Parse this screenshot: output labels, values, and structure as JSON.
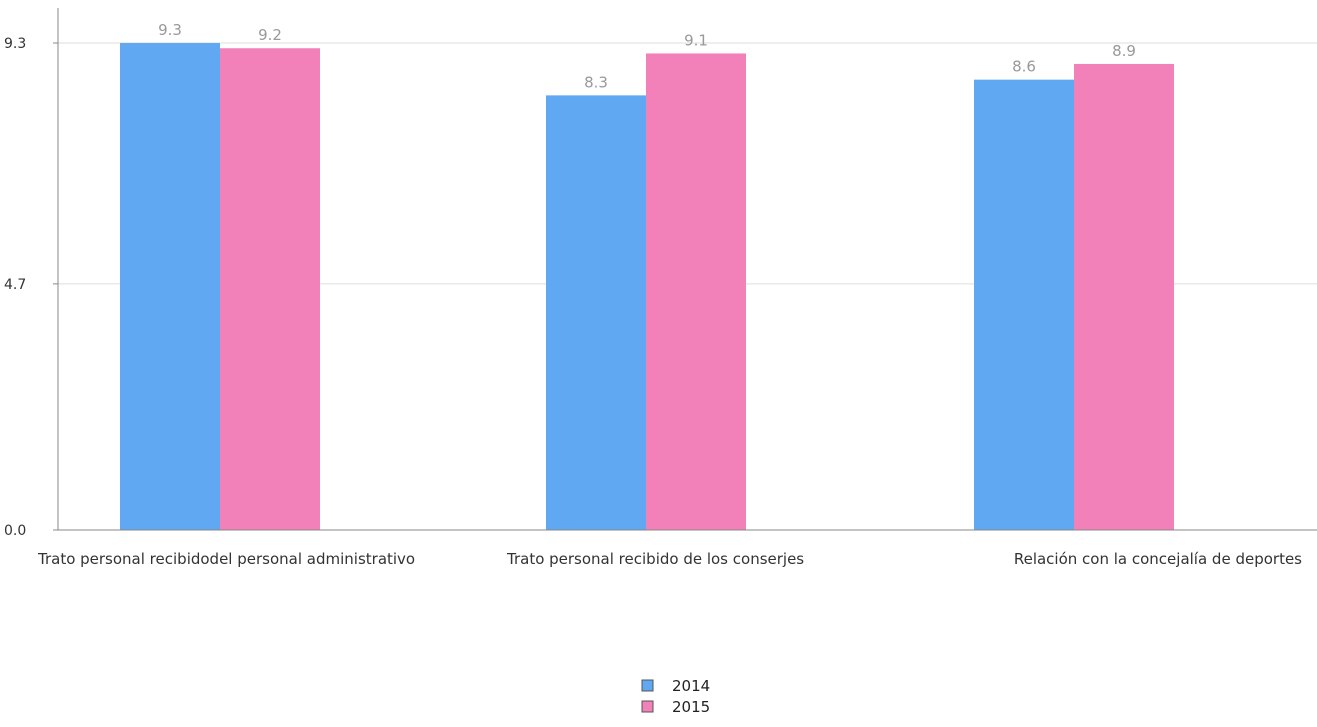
{
  "chart_data": {
    "type": "bar",
    "categories": [
      "Trato personal recibidodel personal administrativo",
      "Trato personal recibido de los conserjes",
      "Relación con la concejalía de deportes"
    ],
    "series": [
      {
        "name": "2014",
        "values": [
          9.3,
          8.3,
          8.6
        ],
        "color": "#60a8f2"
      },
      {
        "name": "2015",
        "values": [
          9.2,
          9.1,
          8.9
        ],
        "color": "#f281b9"
      }
    ],
    "data_labels": [
      [
        "9.3",
        "8.3",
        "8.6"
      ],
      [
        "9.2",
        "9.1",
        "8.9"
      ]
    ],
    "yticks": [
      {
        "value": 0.0,
        "label": "0.0"
      },
      {
        "value": 4.7,
        "label": "4.7"
      },
      {
        "value": 9.3,
        "label": "9.3"
      }
    ],
    "ylim": [
      0,
      10
    ],
    "grid": true,
    "legend_position": "bottom-center",
    "title": "",
    "xlabel": "",
    "ylabel": "",
    "colors": {
      "axis": "#888888",
      "grid": "#dddddd"
    }
  }
}
